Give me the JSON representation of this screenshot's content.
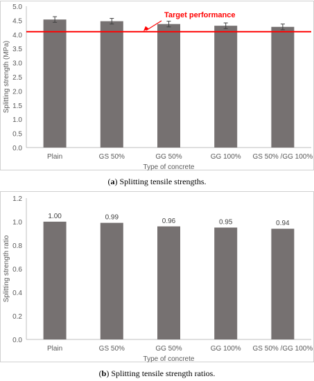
{
  "chart_data": [
    {
      "type": "bar",
      "categories": [
        "Plain",
        "GS 50%",
        "GG 50%",
        "GG 100%",
        "GS 50% /GG 100%"
      ],
      "values": [
        4.53,
        4.47,
        4.37,
        4.31,
        4.27
      ],
      "errors": [
        0.1,
        0.1,
        0.1,
        0.1,
        0.1
      ],
      "xlabel": "Type of concrete",
      "ylabel": "Splitting strength (MPa)",
      "ylim": [
        0,
        5
      ],
      "yticks": [
        "0.0",
        "0.5",
        "1.0",
        "1.5",
        "2.0",
        "2.5",
        "3.0",
        "3.5",
        "4.0",
        "4.5",
        "5.0"
      ],
      "reference_line": {
        "label": "Target performance",
        "value": 4.1,
        "color": "#ff0000"
      },
      "bar_color": "#767171",
      "grid": false
    },
    {
      "type": "bar",
      "categories": [
        "Plain",
        "GS 50%",
        "GG 50%",
        "GG 100%",
        "GS 50% /GG 100%"
      ],
      "values": [
        1.0,
        0.99,
        0.96,
        0.95,
        0.94
      ],
      "data_labels": [
        "1.00",
        "0.99",
        "0.96",
        "0.95",
        "0.94"
      ],
      "xlabel": "Type of concrete",
      "ylabel": "Splitting strength ratio",
      "ylim": [
        0,
        1.2
      ],
      "yticks": [
        "0.0",
        "0.2",
        "0.4",
        "0.6",
        "0.8",
        "1.0",
        "1.2"
      ],
      "bar_color": "#767171",
      "grid": false
    }
  ],
  "captions": {
    "a_label": "a",
    "a_text": "Splitting tensile strengths.",
    "b_label": "b",
    "b_text": "Splitting tensile strength ratios."
  }
}
